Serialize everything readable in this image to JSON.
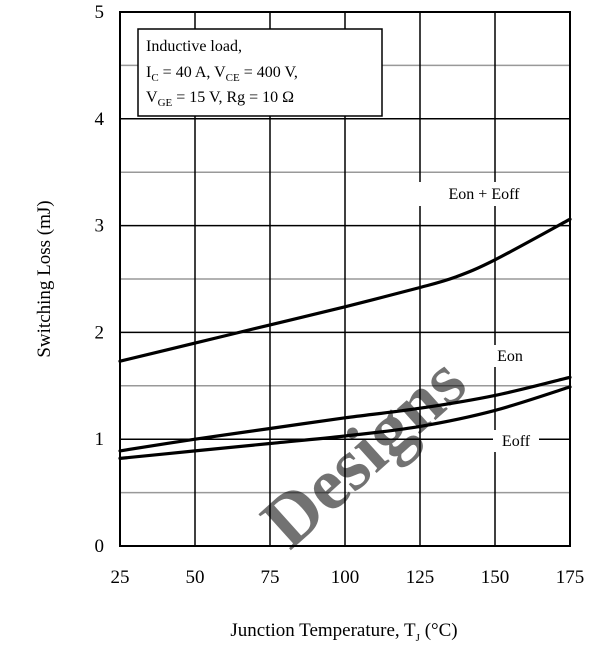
{
  "chart_data": {
    "type": "line",
    "xlabel": "Junction Temperature, T",
    "xlabel_sub": "J",
    "xlabel_unit": " (°C)",
    "ylabel": "Switching Loss (mJ)",
    "xlim": [
      25,
      175
    ],
    "ylim": [
      0,
      5
    ],
    "x_ticks": [
      "25",
      "50",
      "75",
      "100",
      "125",
      "150",
      "175"
    ],
    "y_ticks": [
      "0",
      "1",
      "2",
      "3",
      "4",
      "5"
    ],
    "grid": true,
    "series": [
      {
        "name": "Eon + Eoff",
        "x": [
          25,
          50,
          75,
          100,
          125,
          137,
          150,
          175
        ],
        "y": [
          1.73,
          1.9,
          2.07,
          2.24,
          2.42,
          2.52,
          2.68,
          3.06
        ]
      },
      {
        "name": "Eon",
        "x": [
          25,
          50,
          75,
          100,
          125,
          150,
          175
        ],
        "y": [
          0.89,
          1.0,
          1.1,
          1.2,
          1.29,
          1.41,
          1.58
        ]
      },
      {
        "name": "Eoff",
        "x": [
          25,
          50,
          75,
          100,
          125,
          150,
          175
        ],
        "y": [
          0.82,
          0.89,
          0.96,
          1.03,
          1.12,
          1.27,
          1.49
        ]
      }
    ],
    "annotation_box": {
      "line1": "Inductive load,",
      "line2": [
        {
          "t": "I",
          "sub": false
        },
        {
          "t": "C",
          "sub": true
        },
        {
          "t": " = 40 A, V",
          "sub": false
        },
        {
          "t": "CE",
          "sub": true
        },
        {
          "t": " = 400 V,",
          "sub": false
        }
      ],
      "line3": [
        {
          "t": "V",
          "sub": false
        },
        {
          "t": "GE",
          "sub": true
        },
        {
          "t": " = 15 V, Rg = 10 Ω",
          "sub": false
        }
      ]
    },
    "watermark": "Designs",
    "colors": {
      "curve": "#000000",
      "major_grid": "#000000",
      "minor_grid": "#999999"
    }
  }
}
